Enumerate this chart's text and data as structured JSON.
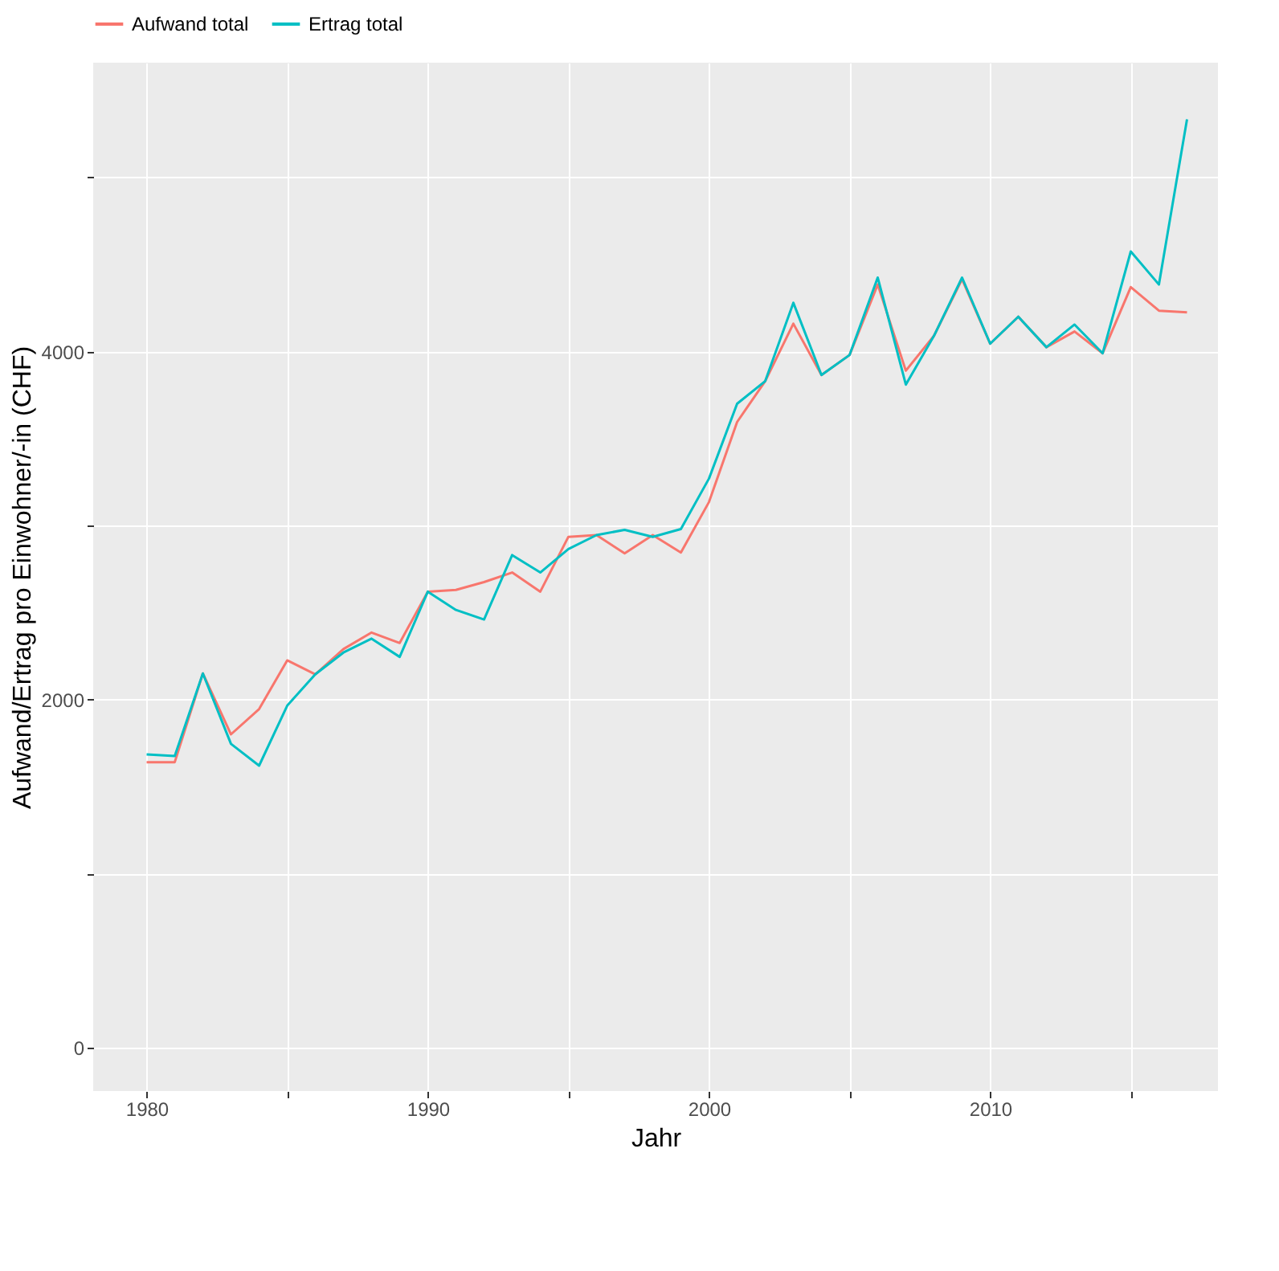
{
  "chart_data": {
    "type": "line",
    "xlabel": "Jahr",
    "ylabel": "Aufwand/Ertrag pro Einwohner/-in (CHF)",
    "x": [
      1980,
      1981,
      1982,
      1983,
      1984,
      1985,
      1986,
      1987,
      1988,
      1989,
      1990,
      1991,
      1992,
      1993,
      1994,
      1995,
      1996,
      1997,
      1998,
      1999,
      2000,
      2001,
      2002,
      2003,
      2004,
      2005,
      2006,
      2007,
      2008,
      2009,
      2010,
      2011,
      2012,
      2013,
      2014,
      2015,
      2016,
      2017
    ],
    "series": [
      {
        "name": "Aufwand total",
        "color": "#f8766d",
        "values": [
          1640,
          1640,
          2150,
          1800,
          1945,
          2225,
          2145,
          2290,
          2385,
          2325,
          2620,
          2630,
          2675,
          2730,
          2620,
          2935,
          2945,
          2840,
          2945,
          2845,
          3135,
          3595,
          3830,
          4160,
          3865,
          3980,
          4385,
          3890,
          4090,
          4415,
          4045,
          4200,
          4025,
          4115,
          3990,
          4370,
          4235,
          4225
        ]
      },
      {
        "name": "Ertrag total",
        "color": "#00bfc4",
        "values": [
          1685,
          1675,
          2150,
          1745,
          1620,
          1965,
          2145,
          2270,
          2350,
          2245,
          2620,
          2515,
          2460,
          2830,
          2730,
          2865,
          2945,
          2975,
          2935,
          2980,
          3270,
          3700,
          3830,
          4280,
          3865,
          3980,
          4425,
          3810,
          4090,
          4425,
          4045,
          4200,
          4025,
          4155,
          3990,
          4575,
          4385,
          5335
        ]
      }
    ],
    "xlim": [
      1978.1,
      2018.1
    ],
    "xticks": [
      1980,
      {
        "value": 1985,
        "label": null
      },
      1990,
      {
        "value": 1995,
        "label": null
      },
      2000,
      {
        "value": 2005,
        "label": null
      },
      2010,
      {
        "value": 2015,
        "label": null
      }
    ],
    "ylim": [
      -250,
      5660
    ],
    "yticks": [
      0,
      {
        "value": 1000,
        "label": null
      },
      2000,
      {
        "value": 3000,
        "label": null
      },
      4000,
      {
        "value": 5000,
        "label": null
      }
    ],
    "grid": true,
    "legend": "top",
    "marker": "none",
    "line_style": "solid"
  }
}
